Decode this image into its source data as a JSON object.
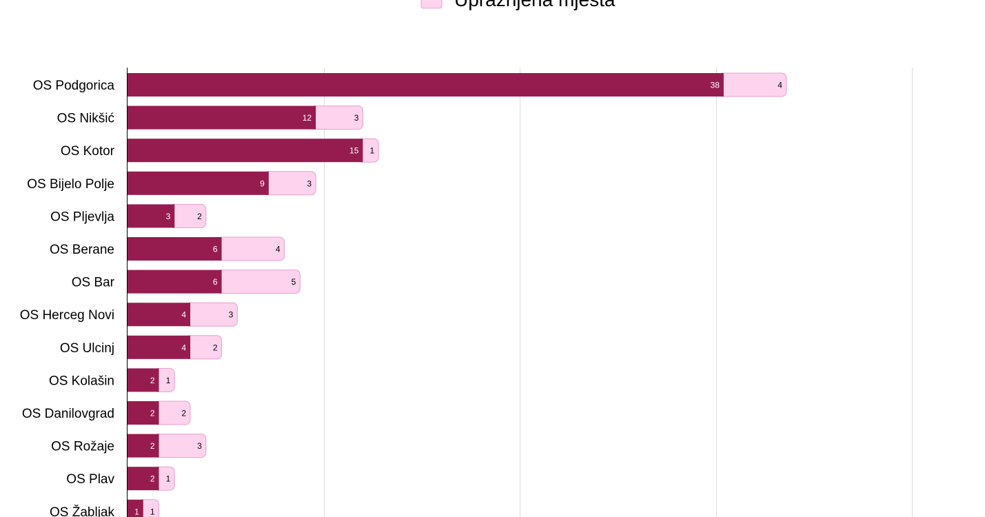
{
  "chart_data": {
    "type": "bar",
    "orientation": "horizontal",
    "stacked": true,
    "title": "",
    "xlabel": "",
    "ylabel": "",
    "xlim": [
      0,
      50
    ],
    "grid": true,
    "legend_position": "top",
    "categories": [
      "OS Podgorica",
      "OS Nikšić",
      "OS Kotor",
      "OS Bijelo Polje",
      "OS Pljevlja",
      "OS Berane",
      "OS Bar",
      "OS Herceg Novi",
      "OS Ulcinj",
      "OS Kolašin",
      "OS Danilovgrad",
      "OS Rožaje",
      "OS Plav",
      "OS Žabljak"
    ],
    "series": [
      {
        "values": [
          38,
          12,
          15,
          9,
          3,
          6,
          6,
          4,
          4,
          2,
          2,
          2,
          2,
          1
        ],
        "color": "#961c50",
        "label_color": "#ffffff"
      },
      {
        "name": "Upražnjena mjesta",
        "values": [
          4,
          3,
          1,
          3,
          2,
          4,
          5,
          3,
          2,
          1,
          2,
          3,
          1,
          1
        ],
        "color": "#fdd3ee",
        "label_color": "#000000"
      }
    ]
  }
}
